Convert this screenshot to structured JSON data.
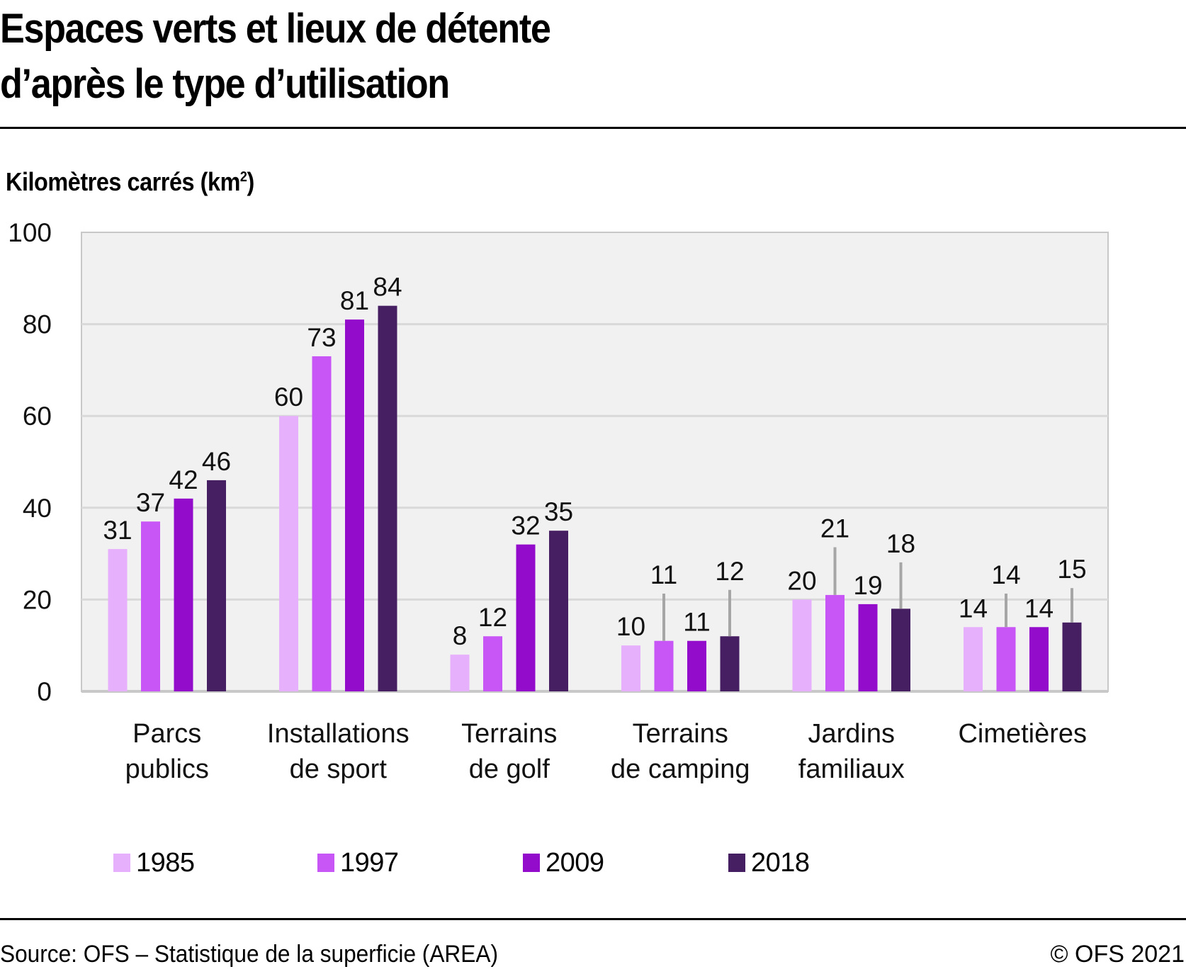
{
  "chart_data": {
    "type": "bar",
    "title": "Espaces verts et lieux de détente d’après le type d’utilisation",
    "title_lines": [
      "Espaces verts et lieux de détente",
      "d’après le type d’utilisation"
    ],
    "ylabel": "Kilomètres carrés (km",
    "ylabel_sup": "2",
    "ylabel_close": ")",
    "xlabel": "",
    "ylim": [
      0,
      100
    ],
    "yticks": [
      0,
      20,
      40,
      60,
      80,
      100
    ],
    "grid": true,
    "legend_position": "bottom",
    "categories": [
      "Parcs publics",
      "Installations de sport",
      "Terrains de golf",
      "Terrains de camping",
      "Jardins familiaux",
      "Cimetières"
    ],
    "category_lines": [
      [
        "Parcs",
        "publics"
      ],
      [
        "Installations",
        "de sport"
      ],
      [
        "Terrains",
        "de golf"
      ],
      [
        "Terrains",
        "de camping"
      ],
      [
        "Jardins",
        "familiaux"
      ],
      [
        "Cimetières"
      ]
    ],
    "series": [
      {
        "name": "1985",
        "color": "#e6b0fc",
        "values": [
          31,
          60,
          8,
          10,
          20,
          14
        ],
        "error_upper": [
          null,
          null,
          null,
          null,
          null,
          null
        ]
      },
      {
        "name": "1997",
        "color": "#c855f6",
        "values": [
          37,
          73,
          12,
          11,
          21,
          14
        ],
        "error_upper": [
          null,
          null,
          null,
          21.3,
          31.4,
          21.3
        ]
      },
      {
        "name": "2009",
        "color": "#930bcb",
        "values": [
          42,
          81,
          32,
          11,
          19,
          14
        ],
        "error_upper": [
          null,
          null,
          null,
          null,
          null,
          null
        ]
      },
      {
        "name": "2018",
        "color": "#461e62",
        "values": [
          46,
          84,
          35,
          12,
          18,
          15
        ],
        "error_upper": [
          null,
          null,
          null,
          22.1,
          28.1,
          22.5
        ]
      }
    ]
  },
  "colors": {
    "plot_background": "#f1f1f1",
    "gridline": "#d9d9d9",
    "axis": "#c8c8c8",
    "error_bar": "#a6a6a6"
  },
  "footer": {
    "source": "Source: OFS – Statistique de la superficie (AREA)",
    "copyright": "© OFS 2021"
  }
}
